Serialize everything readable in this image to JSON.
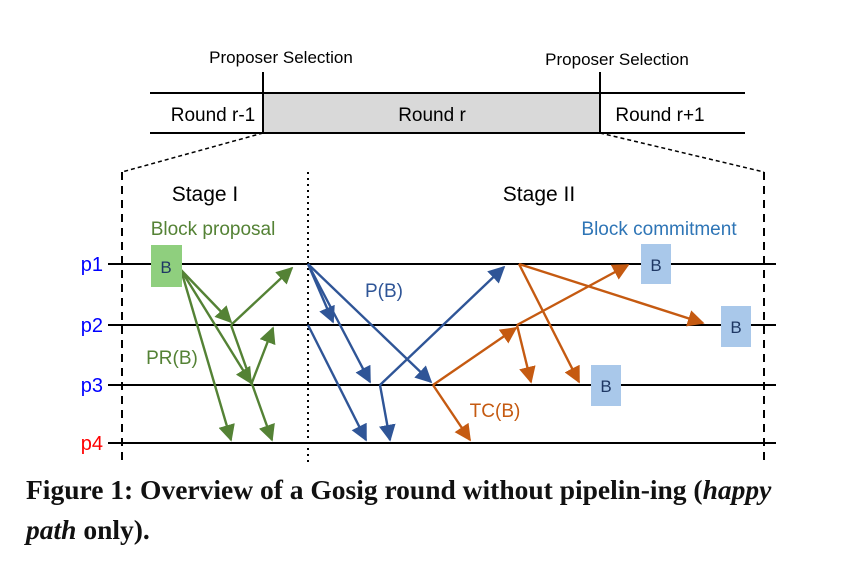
{
  "timeline": {
    "proposer_left": "Proposer Selection",
    "proposer_right": "Proposer Selection",
    "round_prev": "Round r-1",
    "round_cur": "Round r",
    "round_next": "Round r+1"
  },
  "stages": {
    "stage1_title": "Stage I",
    "stage1_subtitle": "Block proposal",
    "stage2_title": "Stage II",
    "stage2_subtitle": "Block commitment"
  },
  "processes": [
    "p1",
    "p2",
    "p3",
    "p4"
  ],
  "messages": {
    "proposal": "PR(B)",
    "prevote": "P(B)",
    "commit": "TC(B)"
  },
  "block_label": "B",
  "caption": {
    "part1": "Figure 1: Overview of a Gosig round without pipelin-ing (",
    "italic": "happy path",
    "part2": " only)."
  },
  "colors": {
    "proposal": "#548235",
    "proposal_box": "#8fcf7e",
    "prevote": "#2f5597",
    "commit": "#c55a11",
    "block_box": "#a9c8ea",
    "process_blue": "#0000ff",
    "process_red": "#ff0000",
    "round_fill": "#d9d9d9",
    "subtitle_green": "#548235",
    "subtitle_blue": "#2e75b6"
  }
}
